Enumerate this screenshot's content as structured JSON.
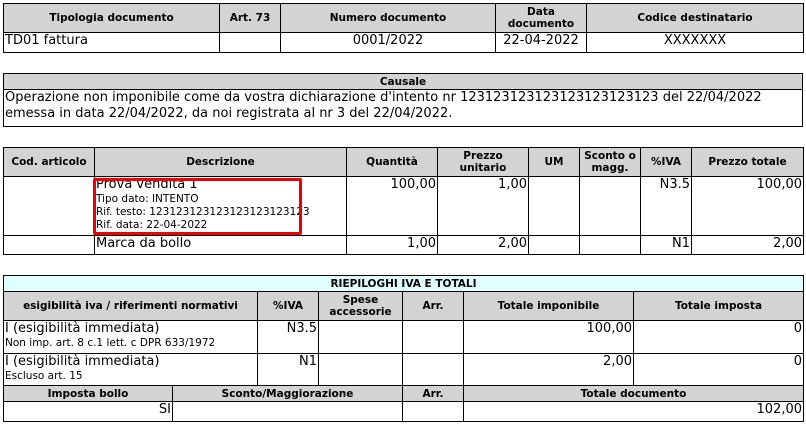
{
  "doc": {
    "headers": [
      "Tipologia documento",
      "Art. 73",
      "Numero documento",
      "Data documento",
      "Codice destinatario"
    ],
    "values": [
      "TD01 fattura",
      "",
      "0001/2022",
      "22-04-2022",
      "XXXXXXX"
    ]
  },
  "causale": {
    "title": "Causale",
    "text": "Operazione non imponibile come da vostra dichiarazione d'intento nr 123123123123123123123123 del 22/04/2022 emessa in data 22/04/2022, da noi registrata al nr 3 del 22/04/2022."
  },
  "lines": {
    "headers": [
      "Cod. articolo",
      "Descrizione",
      "Quantità",
      "Prezzo unitario",
      "UM",
      "Sconto o magg.",
      "%IVA",
      "Prezzo totale"
    ],
    "rows": [
      {
        "code": "",
        "desc": "Prova vendita 1",
        "details": [
          "Tipo dato: INTENTO",
          "Rif. testo: 123123123123123123123123",
          "Rif. data: 22-04-2022"
        ],
        "qty": "100,00",
        "price": "1,00",
        "um": "",
        "disc": "",
        "iva": "N3.5",
        "total": "100,00"
      },
      {
        "code": "",
        "desc": "Marca da bollo",
        "details": [],
        "qty": "1,00",
        "price": "2,00",
        "um": "",
        "disc": "",
        "iva": "N1",
        "total": "2,00"
      }
    ]
  },
  "summary": {
    "title": "RIEPILOGHI IVA E TOTALI",
    "headers": [
      "esigibilità iva / riferimenti normativi",
      "%IVA",
      "Spese accessorie",
      "Arr.",
      "Totale imponibile",
      "Totale imposta"
    ],
    "rows": [
      {
        "esig": "I (esigibilità immediata)",
        "ref": "Non imp. art. 8 c.1 lett. c DPR 633/1972",
        "iva": "N3.5",
        "spese": "",
        "arr": "",
        "imponibile": "100,00",
        "imposta": "0"
      },
      {
        "esig": "I (esigibilità immediata)",
        "ref": "Escluso art. 15",
        "iva": "N1",
        "spese": "",
        "arr": "",
        "imponibile": "2,00",
        "imposta": "0"
      }
    ],
    "totals_headers": [
      "Imposta bollo",
      "Sconto/Maggiorazione",
      "Arr.",
      "Totale documento"
    ],
    "totals": {
      "bollo": "SI",
      "sconto": "",
      "arr": "",
      "totale": "102,00"
    }
  },
  "colors": {
    "highlight": "#ee0000",
    "header_bg": "#d3d3d3",
    "summary_title_bg": "#e0ffff"
  }
}
